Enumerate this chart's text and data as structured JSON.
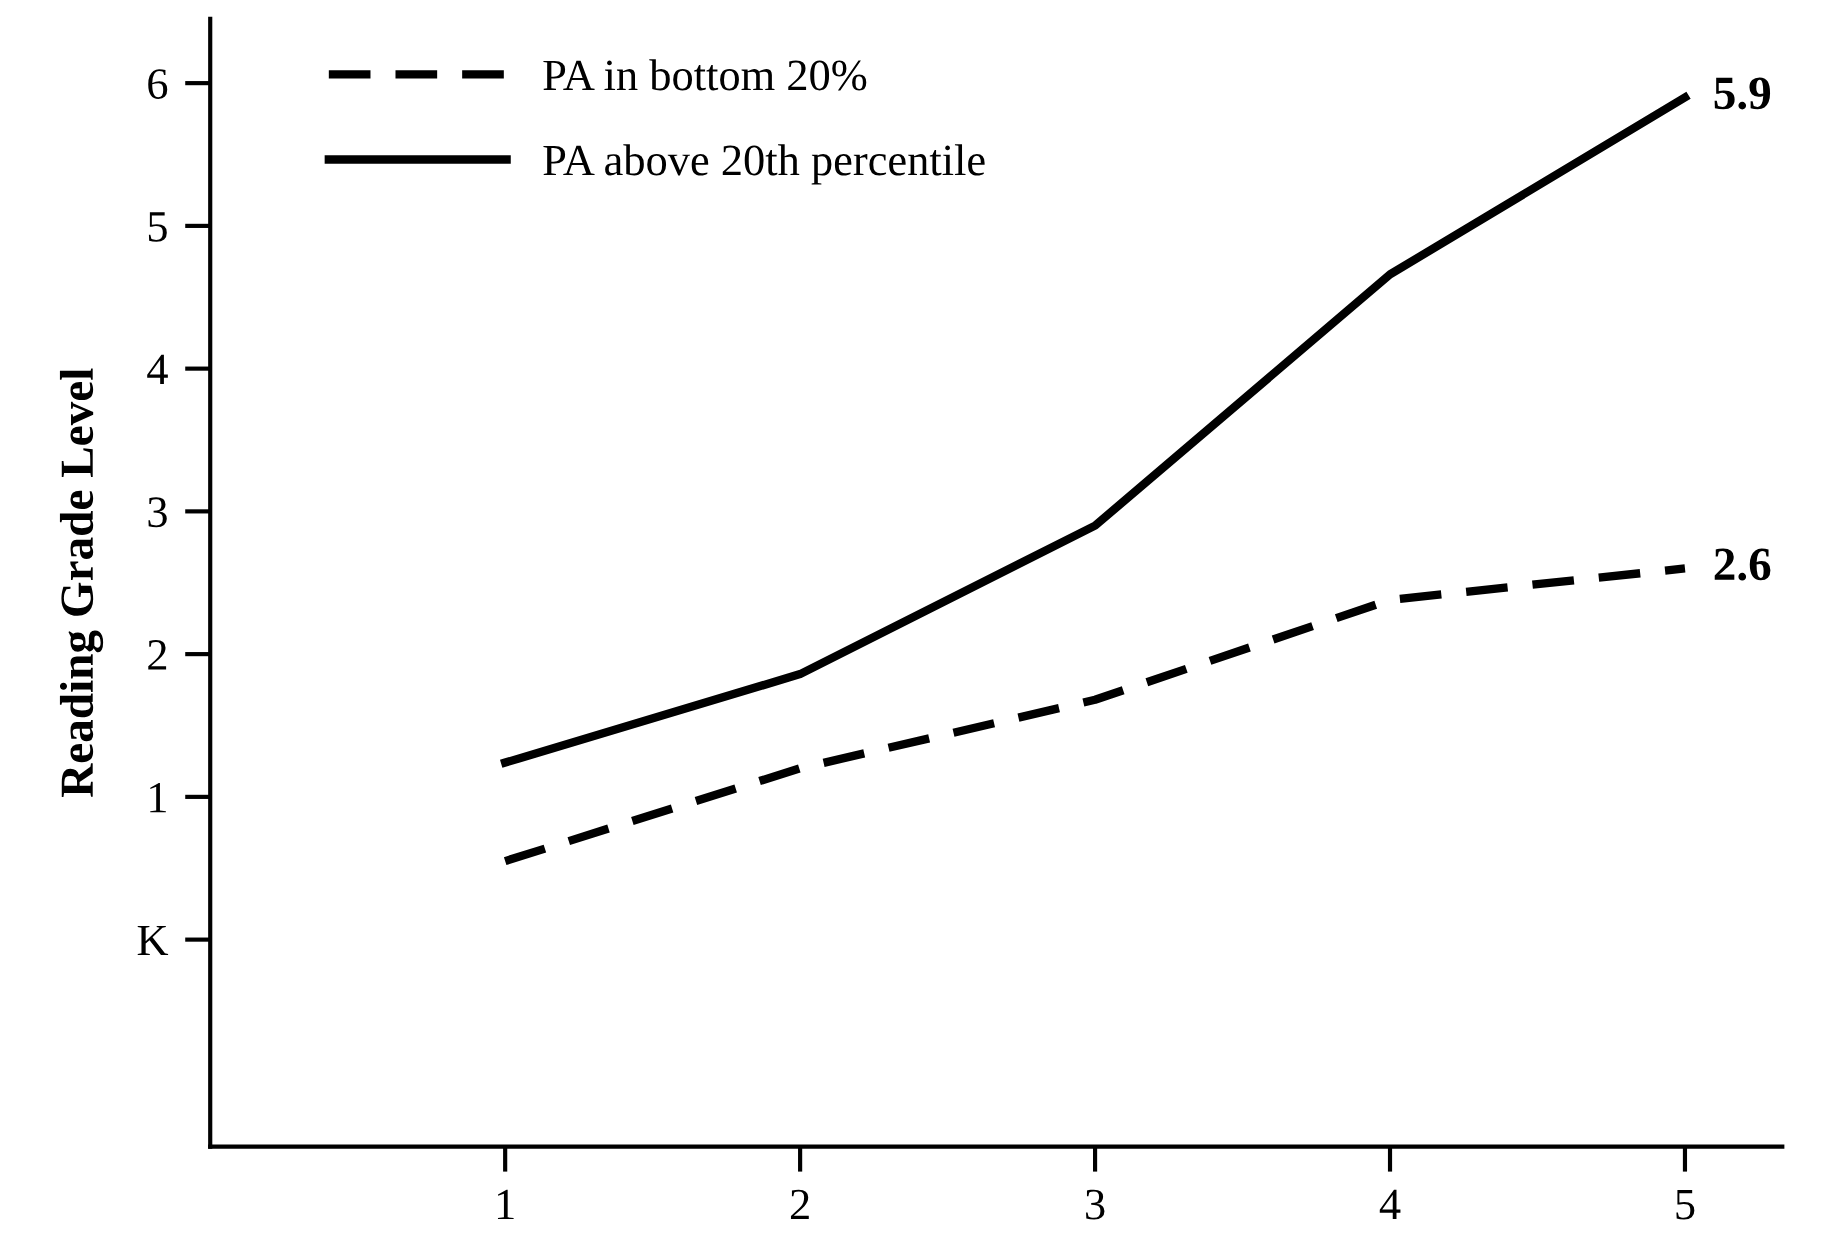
{
  "chart_data": {
    "type": "line",
    "ylabel": "Reading Grade Level",
    "x": [
      1,
      2,
      3,
      4,
      5
    ],
    "series": [
      {
        "name": "PA in bottom 20%",
        "color": "#000000",
        "line_style": "dashed",
        "values": [
          0.55,
          1.2,
          1.68,
          2.38,
          2.6
        ],
        "value_labels": [
          null,
          null,
          null,
          null,
          "2.6"
        ]
      },
      {
        "name": "PA above 20th percentile",
        "color": "#000000",
        "line_style": "solid",
        "values": [
          1.24,
          1.86,
          2.9,
          4.66,
          5.9
        ],
        "value_labels": [
          null,
          null,
          null,
          null,
          "5.9"
        ]
      }
    ],
    "xlim": [
      0,
      5.33
    ],
    "xticks": [
      1,
      2,
      3,
      4,
      5
    ],
    "ylim": [
      -1.45,
      6.45
    ],
    "yticks": [
      {
        "value": 0,
        "label": "K"
      },
      1,
      2,
      3,
      4,
      5,
      6
    ],
    "legend": "top left",
    "grid": false
  }
}
